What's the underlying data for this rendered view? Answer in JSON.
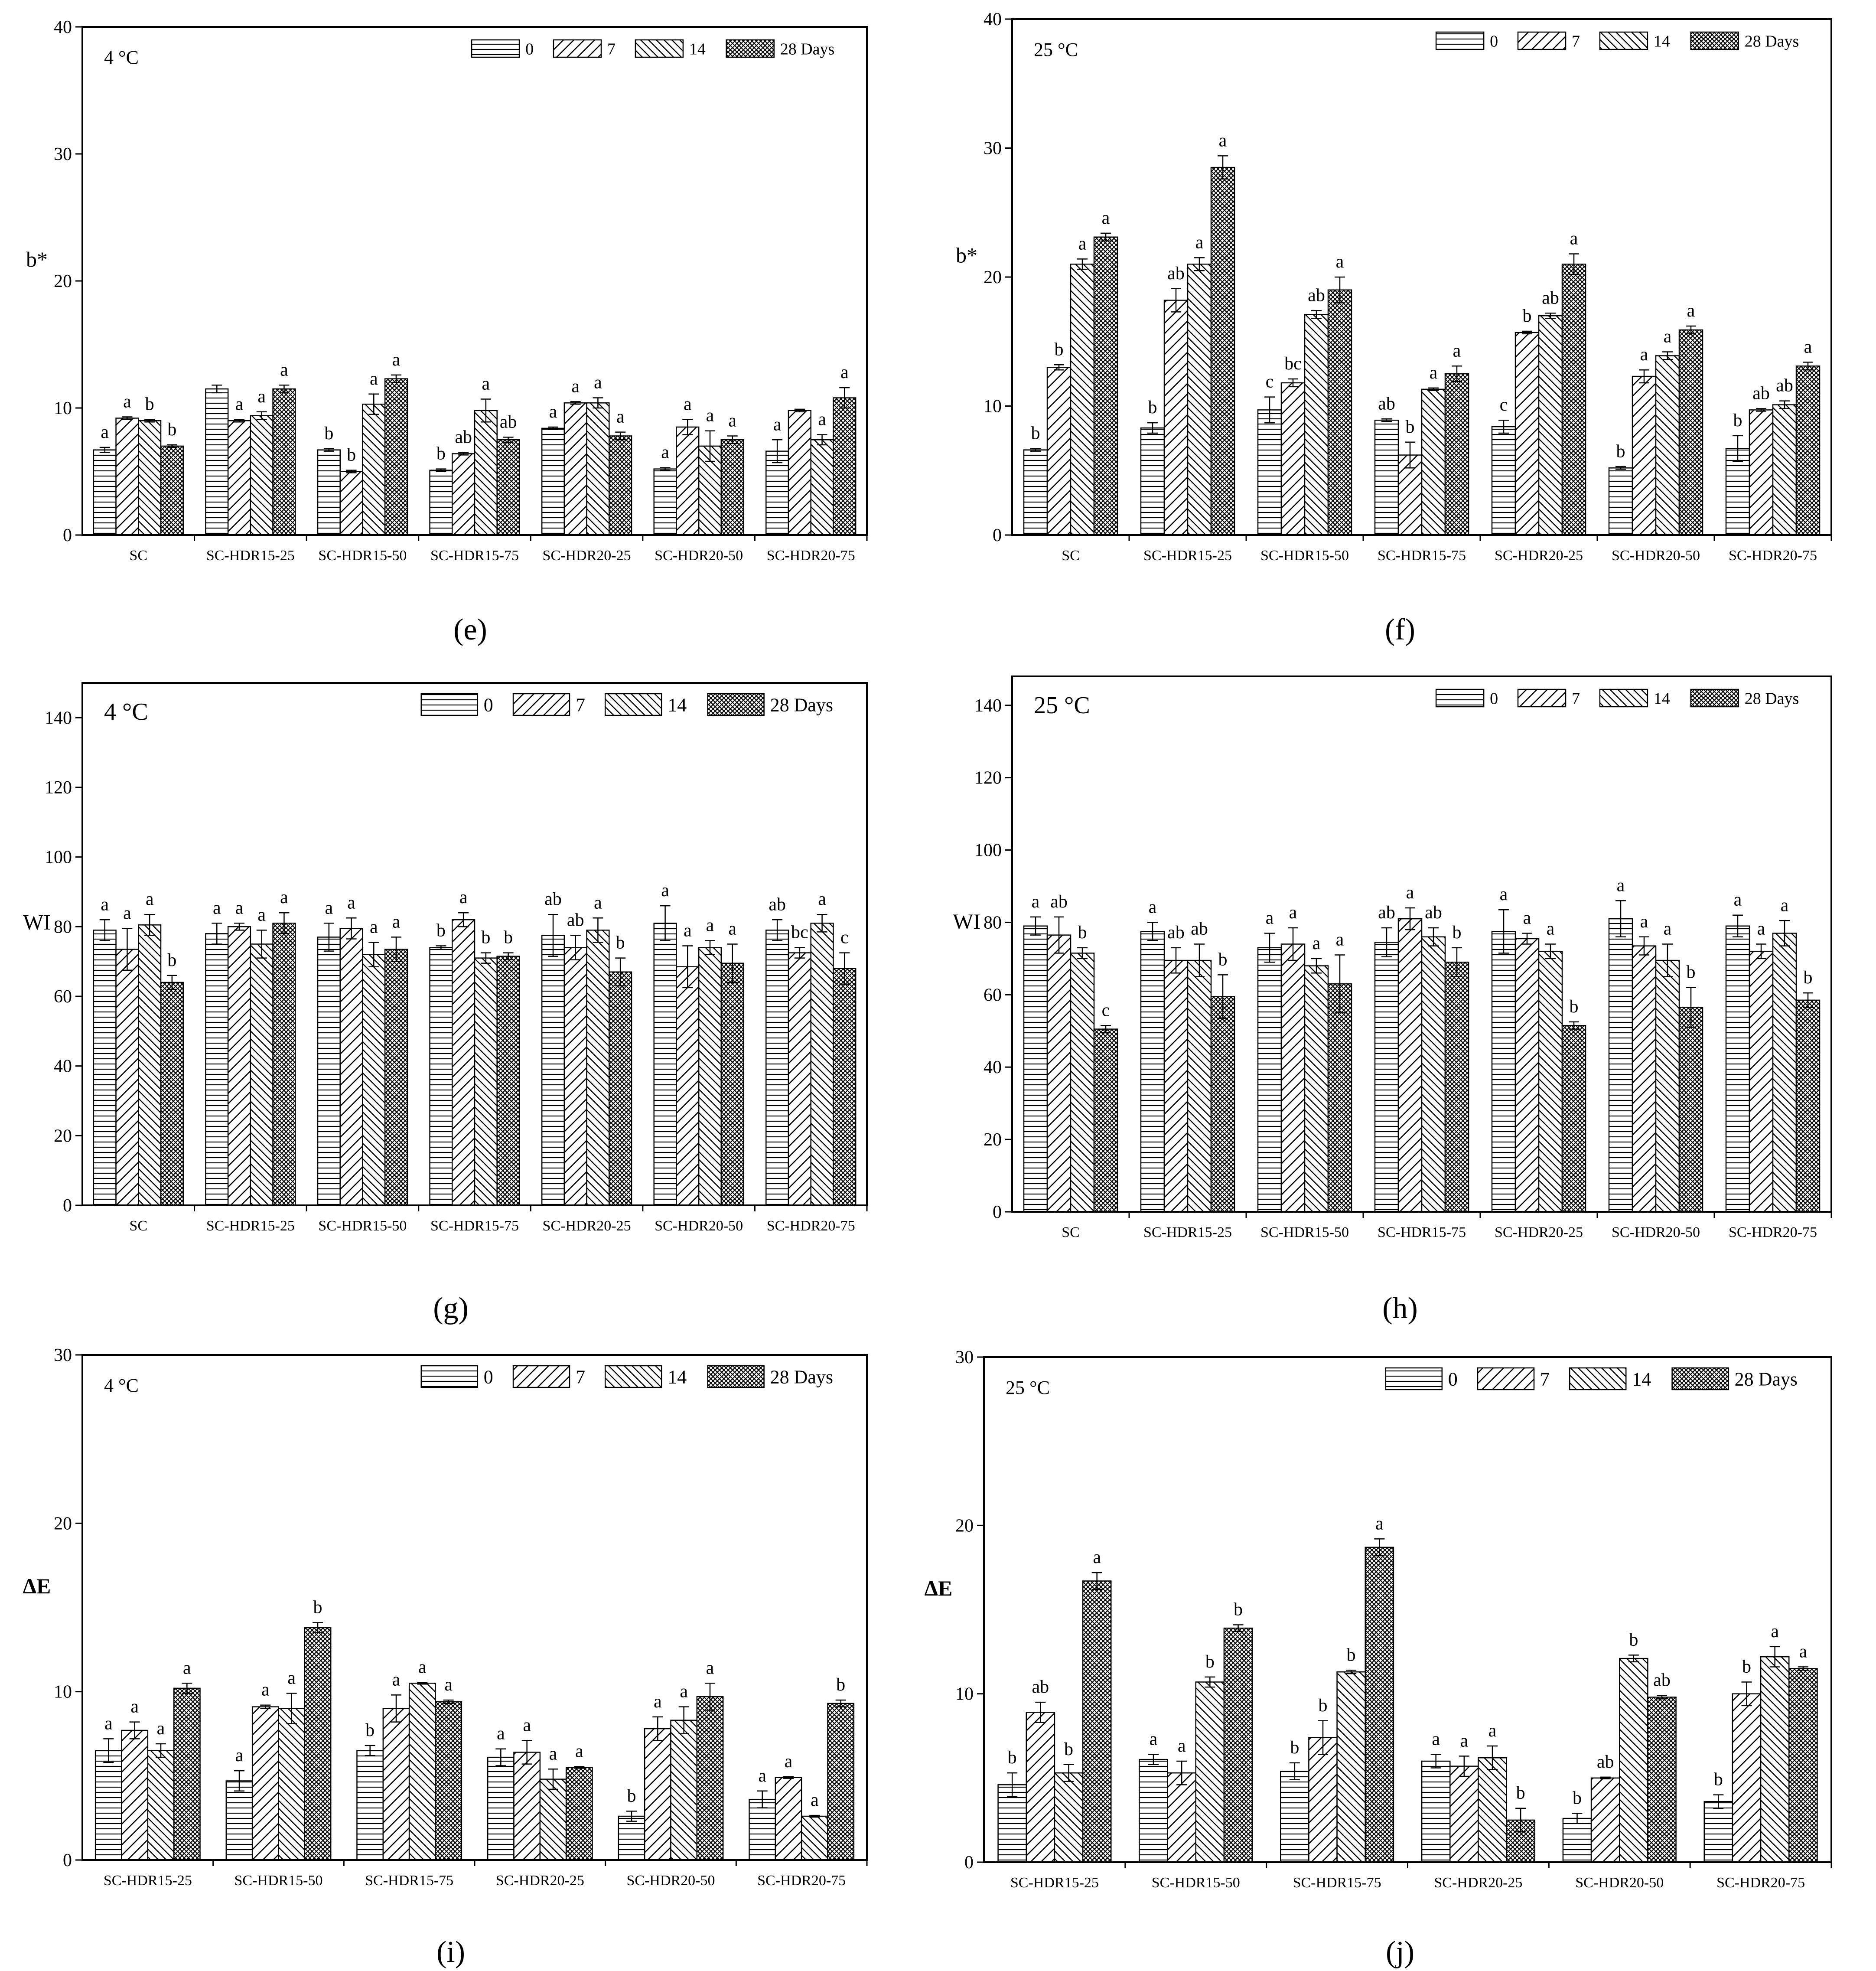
{
  "figure": {
    "categories": [
      "SC",
      "SC-HDR15-25",
      "SC-HDR15-50",
      "SC-HDR15-75",
      "SC-HDR20-25",
      "SC-HDR20-50",
      "SC-HDR20-75"
    ],
    "legend": [
      "0",
      "7",
      "14",
      "28 Days"
    ],
    "series_patterns": [
      "horizontal",
      "forward-diagonal",
      "back-diagonal",
      "crosshatch"
    ]
  },
  "chart_data": [
    {
      "id": "e",
      "type": "bar",
      "panel_label": "(e)",
      "temperature": "4 °C",
      "ylabel": "b*",
      "xlabel": "",
      "ylim": [
        0,
        40
      ],
      "yticks": [
        0,
        10,
        20,
        30,
        40
      ],
      "legend_position": "top-right",
      "categories": [
        "SC",
        "SC-HDR15-25",
        "SC-HDR15-50",
        "SC-HDR15-75",
        "SC-HDR20-25",
        "SC-HDR20-50",
        "SC-HDR20-75"
      ],
      "series": [
        {
          "name": "0",
          "values": [
            6.7,
            11.5,
            6.7,
            5.1,
            8.4,
            5.2,
            6.6
          ],
          "errors": [
            0.2,
            0.3,
            0.1,
            0.1,
            0.1,
            0.1,
            0.9
          ],
          "letters": [
            "a",
            "",
            "b",
            "b",
            "a",
            "a",
            "a"
          ]
        },
        {
          "name": "7",
          "values": [
            9.2,
            9.0,
            5.0,
            6.4,
            10.4,
            8.5,
            9.8
          ],
          "errors": [
            0.1,
            0.1,
            0.1,
            0.1,
            0.1,
            0.6,
            0.1
          ],
          "letters": [
            "a",
            "a",
            "b",
            "ab",
            "a",
            "a",
            ""
          ]
        },
        {
          "name": "14",
          "values": [
            9.0,
            9.4,
            10.3,
            9.8,
            10.4,
            7.0,
            7.5
          ],
          "errors": [
            0.1,
            0.3,
            0.8,
            0.9,
            0.4,
            1.2,
            0.4
          ],
          "letters": [
            "b",
            "a",
            "a",
            "a",
            "a",
            "a",
            "a"
          ]
        },
        {
          "name": "28 Days",
          "values": [
            7.0,
            11.5,
            12.3,
            7.5,
            7.8,
            7.5,
            10.8
          ],
          "errors": [
            0.1,
            0.3,
            0.3,
            0.2,
            0.3,
            0.3,
            0.8
          ],
          "letters": [
            "b",
            "a",
            "a",
            "ab",
            "a",
            "a",
            "a"
          ]
        }
      ]
    },
    {
      "id": "f",
      "type": "bar",
      "panel_label": "(f)",
      "temperature": "25 °C",
      "ylabel": "b*",
      "xlabel": "",
      "ylim": [
        0,
        40
      ],
      "yticks": [
        0,
        10,
        20,
        30,
        40
      ],
      "legend_position": "top-right",
      "categories": [
        "SC",
        "SC-HDR15-25",
        "SC-HDR15-50",
        "SC-HDR15-75",
        "SC-HDR20-25",
        "SC-HDR20-50",
        "SC-HDR20-75"
      ],
      "series": [
        {
          "name": "0",
          "values": [
            6.6,
            8.3,
            9.7,
            8.9,
            8.4,
            5.2,
            6.7
          ],
          "errors": [
            0.1,
            0.4,
            1.0,
            0.1,
            0.5,
            0.1,
            1.0
          ],
          "letters": [
            "b",
            "b",
            "c",
            "ab",
            "c",
            "b",
            "b"
          ]
        },
        {
          "name": "7",
          "values": [
            13.0,
            18.2,
            11.8,
            6.2,
            15.7,
            12.3,
            9.7
          ],
          "errors": [
            0.2,
            0.9,
            0.3,
            1.0,
            0.1,
            0.5,
            0.1
          ],
          "letters": [
            "b",
            "ab",
            "bc",
            "b",
            "b",
            "a",
            "ab"
          ]
        },
        {
          "name": "14",
          "values": [
            21.0,
            21.0,
            17.1,
            11.3,
            17.0,
            13.9,
            10.1
          ],
          "errors": [
            0.4,
            0.5,
            0.3,
            0.1,
            0.2,
            0.3,
            0.3
          ],
          "letters": [
            "a",
            "a",
            "ab",
            "a",
            "ab",
            "a",
            "ab"
          ]
        },
        {
          "name": "28 Days",
          "values": [
            23.1,
            28.5,
            19.0,
            12.5,
            21.0,
            15.9,
            13.1
          ],
          "errors": [
            0.3,
            0.9,
            1.0,
            0.6,
            0.8,
            0.3,
            0.3
          ],
          "letters": [
            "a",
            "a",
            "a",
            "a",
            "a",
            "a",
            "a"
          ]
        }
      ]
    },
    {
      "id": "g",
      "type": "bar",
      "panel_label": "(g)",
      "temperature": "4 °C",
      "ylabel": "WI",
      "xlabel": "",
      "ylim": [
        0,
        150
      ],
      "yticks": [
        0,
        20,
        40,
        60,
        80,
        100,
        120,
        140
      ],
      "legend_position": "top-right",
      "categories": [
        "SC",
        "SC-HDR15-25",
        "SC-HDR15-50",
        "SC-HDR15-75",
        "SC-HDR20-25",
        "SC-HDR20-50",
        "SC-HDR20-75"
      ],
      "series": [
        {
          "name": "0",
          "values": [
            79.0,
            78.0,
            77.0,
            74.0,
            77.5,
            81.0,
            79.0
          ],
          "errors": [
            3.0,
            3.0,
            4.0,
            0.5,
            6.0,
            5.0,
            3.0
          ],
          "letters": [
            "a",
            "a",
            "a",
            "b",
            "ab",
            "a",
            "ab"
          ]
        },
        {
          "name": "7",
          "values": [
            73.5,
            80.0,
            79.5,
            82.0,
            74.0,
            68.5,
            72.5
          ],
          "errors": [
            6.0,
            1.0,
            3.0,
            2.0,
            3.5,
            6.0,
            1.5
          ],
          "letters": [
            "a",
            "a",
            "a",
            "a",
            "ab",
            "a",
            "bc"
          ]
        },
        {
          "name": "14",
          "values": [
            80.5,
            75.0,
            72.0,
            71.0,
            79.0,
            74.0,
            81.0
          ],
          "errors": [
            3.0,
            4.0,
            3.5,
            1.5,
            3.5,
            2.0,
            2.5
          ],
          "letters": [
            "a",
            "a",
            "a",
            "b",
            "a",
            "a",
            "a"
          ]
        },
        {
          "name": "28 Days",
          "values": [
            64.0,
            81.0,
            73.5,
            71.5,
            67.0,
            69.5,
            68.0
          ],
          "errors": [
            2.0,
            3.0,
            3.5,
            1.0,
            4.0,
            5.5,
            4.5
          ],
          "letters": [
            "b",
            "a",
            "a",
            "b",
            "b",
            "a",
            "c"
          ]
        }
      ]
    },
    {
      "id": "h",
      "type": "bar",
      "panel_label": "(h)",
      "temperature": "25 °C",
      "ylabel": "WI",
      "xlabel": "",
      "ylim": [
        0,
        148
      ],
      "yticks": [
        0,
        20,
        40,
        60,
        80,
        100,
        120,
        140
      ],
      "legend_position": "top-right",
      "categories": [
        "SC",
        "SC-HDR15-25",
        "SC-HDR15-50",
        "SC-HDR15-75",
        "SC-HDR20-25",
        "SC-HDR20-50",
        "SC-HDR20-75"
      ],
      "series": [
        {
          "name": "0",
          "values": [
            79.0,
            77.5,
            73.0,
            74.5,
            77.5,
            81.0,
            79.0
          ],
          "errors": [
            2.5,
            2.5,
            4.0,
            4.0,
            6.0,
            5.0,
            3.0
          ],
          "letters": [
            "a",
            "a",
            "a",
            "ab",
            "a",
            "a",
            "a"
          ]
        },
        {
          "name": "7",
          "values": [
            76.5,
            69.5,
            74.0,
            81.0,
            75.5,
            73.5,
            72.0
          ],
          "errors": [
            5.0,
            3.5,
            4.5,
            3.0,
            1.5,
            2.5,
            2.0
          ],
          "letters": [
            "ab",
            "ab",
            "a",
            "a",
            "a",
            "a",
            "a"
          ]
        },
        {
          "name": "14",
          "values": [
            71.5,
            69.5,
            68.0,
            76.0,
            72.0,
            69.5,
            77.0
          ],
          "errors": [
            1.5,
            4.5,
            2.0,
            2.5,
            2.0,
            4.5,
            3.5
          ],
          "letters": [
            "b",
            "ab",
            "a",
            "ab",
            "a",
            "a",
            "a"
          ]
        },
        {
          "name": "28 Days",
          "values": [
            50.5,
            59.5,
            63.0,
            69.0,
            51.5,
            56.5,
            58.5
          ],
          "errors": [
            1.0,
            6.0,
            8.0,
            4.0,
            1.0,
            5.5,
            2.0
          ],
          "letters": [
            "c",
            "b",
            "a",
            "b",
            "b",
            "b",
            "b"
          ]
        }
      ]
    },
    {
      "id": "i",
      "type": "bar",
      "panel_label": "(i)",
      "temperature": "4 °C",
      "ylabel": "ΔE",
      "xlabel": "",
      "ylim": [
        0,
        30
      ],
      "yticks": [
        0,
        10,
        20,
        30
      ],
      "legend_position": "top-right",
      "categories": [
        "SC-HDR15-25",
        "SC-HDR15-50",
        "SC-HDR15-75",
        "SC-HDR20-25",
        "SC-HDR20-50",
        "SC-HDR20-75"
      ],
      "series": [
        {
          "name": "0",
          "values": [
            6.5,
            4.7,
            6.5,
            6.1,
            2.6,
            3.6
          ],
          "errors": [
            0.7,
            0.6,
            0.3,
            0.5,
            0.3,
            0.5
          ],
          "letters": [
            "a",
            "a",
            "b",
            "a",
            "b",
            "a"
          ]
        },
        {
          "name": "7",
          "values": [
            7.7,
            9.1,
            9.0,
            6.4,
            7.8,
            4.9
          ],
          "errors": [
            0.5,
            0.1,
            0.8,
            0.7,
            0.7,
            0.05
          ],
          "letters": [
            "a",
            "a",
            "a",
            "a",
            "a",
            "a"
          ]
        },
        {
          "name": "14",
          "values": [
            6.5,
            9.0,
            10.5,
            4.8,
            8.3,
            2.6
          ],
          "errors": [
            0.4,
            0.9,
            0.05,
            0.6,
            0.8,
            0.05
          ],
          "letters": [
            "a",
            "a",
            "a",
            "a",
            "a",
            "a"
          ]
        },
        {
          "name": "28 Days",
          "values": [
            10.2,
            13.8,
            9.4,
            5.5,
            9.7,
            9.3
          ],
          "errors": [
            0.3,
            0.3,
            0.1,
            0.05,
            0.8,
            0.2
          ],
          "letters": [
            "a",
            "b",
            "a",
            "a",
            "a",
            "b"
          ]
        }
      ]
    },
    {
      "id": "j",
      "type": "bar",
      "panel_label": "(j)",
      "temperature": "25 °C",
      "ylabel": "ΔE",
      "xlabel": "",
      "ylim": [
        0,
        30
      ],
      "yticks": [
        0,
        10,
        20,
        30
      ],
      "legend_position": "top-right",
      "categories": [
        "SC-HDR15-25",
        "SC-HDR15-50",
        "SC-HDR15-75",
        "SC-HDR20-25",
        "SC-HDR20-50",
        "SC-HDR20-75"
      ],
      "series": [
        {
          "name": "0",
          "values": [
            4.6,
            6.1,
            5.4,
            6.0,
            2.6,
            3.6
          ],
          "errors": [
            0.7,
            0.3,
            0.5,
            0.4,
            0.3,
            0.4
          ],
          "letters": [
            "b",
            "a",
            "b",
            "a",
            "b",
            "b"
          ]
        },
        {
          "name": "7",
          "values": [
            8.9,
            5.3,
            7.4,
            5.7,
            5.0,
            10.0
          ],
          "errors": [
            0.6,
            0.7,
            1.0,
            0.6,
            0.05,
            0.7
          ],
          "letters": [
            "ab",
            "a",
            "b",
            "a",
            "ab",
            "b"
          ]
        },
        {
          "name": "14",
          "values": [
            5.3,
            10.7,
            11.3,
            6.2,
            12.1,
            12.2
          ],
          "errors": [
            0.5,
            0.3,
            0.1,
            0.7,
            0.2,
            0.6
          ],
          "letters": [
            "b",
            "b",
            "b",
            "a",
            "b",
            "a"
          ]
        },
        {
          "name": "28 Days",
          "values": [
            16.7,
            13.9,
            18.7,
            2.5,
            9.8,
            11.5
          ],
          "errors": [
            0.5,
            0.2,
            0.5,
            0.7,
            0.1,
            0.1
          ],
          "letters": [
            "a",
            "b",
            "a",
            "b",
            "ab",
            "a"
          ]
        }
      ]
    }
  ]
}
